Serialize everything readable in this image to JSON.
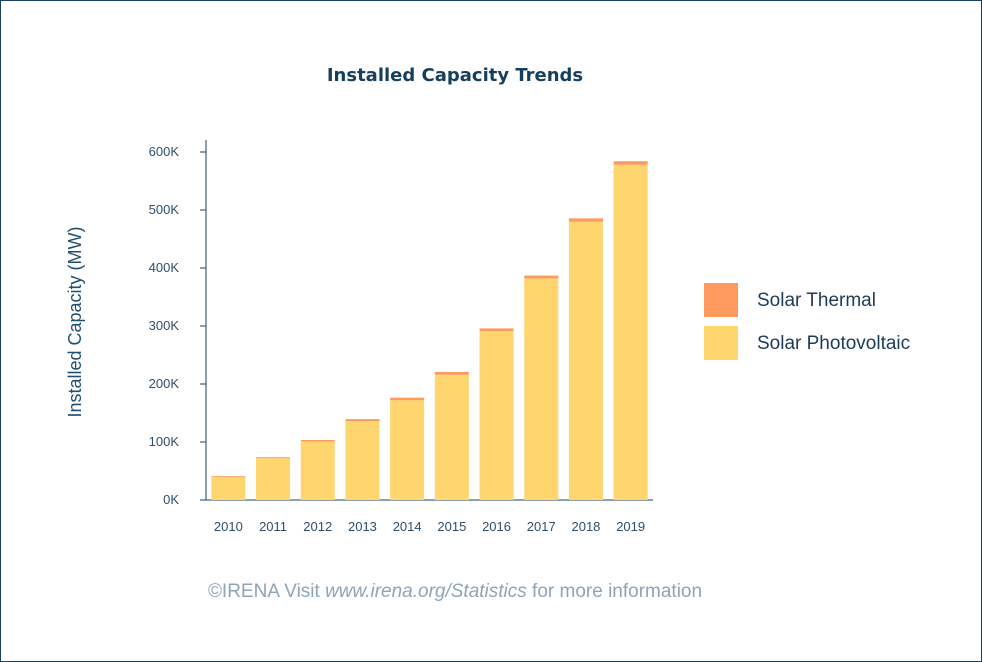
{
  "chart_data": {
    "type": "bar",
    "stacked": true,
    "title": "Installed Capacity Trends",
    "xlabel": "",
    "ylabel": "Installed Capacity (MW)",
    "ylim": [
      0,
      620000
    ],
    "yticks": [
      0,
      100000,
      200000,
      300000,
      400000,
      500000,
      600000
    ],
    "ytick_labels": [
      "0K",
      "100K",
      "200K",
      "300K",
      "400K",
      "500K",
      "600K"
    ],
    "categories": [
      "2010",
      "2011",
      "2012",
      "2013",
      "2014",
      "2015",
      "2016",
      "2017",
      "2018",
      "2019"
    ],
    "series": [
      {
        "name": "Solar Photovoltaic",
        "color": "#ffd66e",
        "values": [
          40000,
          72000,
          101000,
          136000,
          172000,
          216000,
          291000,
          382000,
          480000,
          578000
        ]
      },
      {
        "name": "Solar Thermal",
        "color": "#ff9a5e",
        "values": [
          1300,
          1800,
          2500,
          3500,
          4300,
          4700,
          4900,
          5000,
          5600,
          6100
        ]
      }
    ],
    "legend_position": "right",
    "grid": false
  },
  "footer": {
    "prefix": "©IRENA Visit ",
    "link": "www.irena.org/Statistics",
    "suffix": " for more information"
  },
  "colors": {
    "title": "#143f5f",
    "axis": "#1c3f5e",
    "footer": "#8ea4b8"
  }
}
